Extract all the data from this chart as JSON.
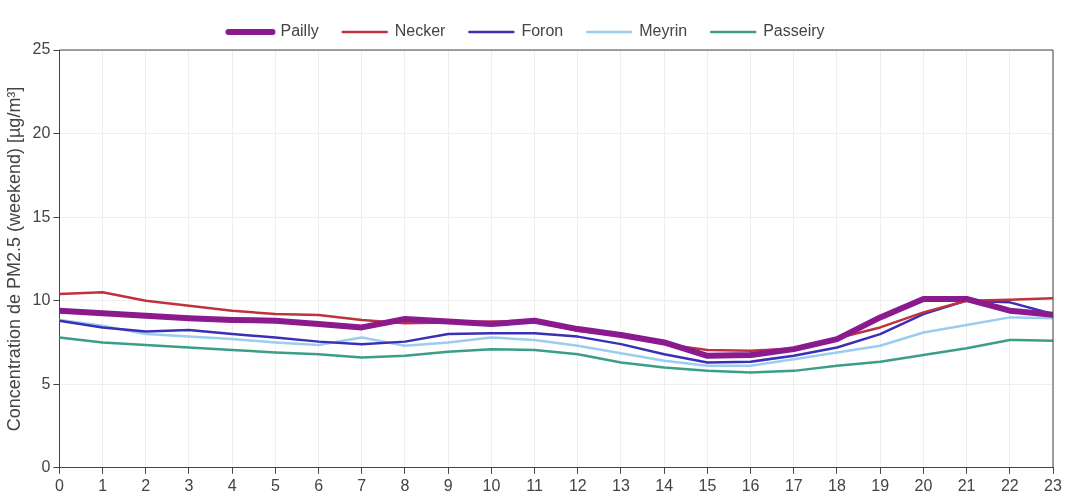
{
  "chart_data": {
    "type": "line",
    "ylabel": "Concentration de PM2.5 (weekend) [µg/m³]",
    "x": [
      0,
      1,
      2,
      3,
      4,
      5,
      6,
      7,
      8,
      9,
      10,
      11,
      12,
      13,
      14,
      15,
      16,
      17,
      18,
      19,
      20,
      21,
      22,
      23
    ],
    "xlim": [
      0,
      23
    ],
    "xticks": [
      0,
      1,
      2,
      3,
      4,
      5,
      6,
      7,
      8,
      9,
      10,
      11,
      12,
      13,
      14,
      15,
      16,
      17,
      18,
      19,
      20,
      21,
      22,
      23
    ],
    "ylim": [
      0,
      25
    ],
    "yticks": [
      0,
      5,
      10,
      15,
      20,
      25
    ],
    "grid": true,
    "legend": "top",
    "marker": "none",
    "series": [
      {
        "name": "Pailly",
        "color": "#8b1a8f",
        "values": [
          9.4,
          9.25,
          9.1,
          8.95,
          8.85,
          8.8,
          8.6,
          8.4,
          8.9,
          8.75,
          8.6,
          8.8,
          8.3,
          7.95,
          7.5,
          6.7,
          6.75,
          7.1,
          7.7,
          9.0,
          10.1,
          10.1,
          9.4,
          9.15
        ]
      },
      {
        "name": "Necker",
        "color": "#c0313f",
        "values": [
          10.4,
          10.5,
          10.0,
          9.7,
          9.4,
          9.2,
          9.15,
          8.85,
          8.65,
          8.7,
          8.75,
          8.75,
          8.2,
          7.9,
          7.4,
          7.05,
          7.0,
          7.15,
          7.75,
          8.4,
          9.3,
          10.0,
          10.05,
          10.15
        ]
      },
      {
        "name": "Foron",
        "color": "#3a2fb5",
        "values": [
          8.8,
          8.4,
          8.15,
          8.25,
          8.0,
          7.8,
          7.55,
          7.4,
          7.55,
          8.0,
          8.05,
          8.05,
          7.85,
          7.4,
          6.8,
          6.3,
          6.35,
          6.7,
          7.2,
          8.0,
          9.2,
          10.0,
          9.9,
          9.2
        ]
      },
      {
        "name": "Meyrin",
        "color": "#9ccdee",
        "values": [
          8.85,
          8.5,
          8.0,
          7.85,
          7.7,
          7.5,
          7.35,
          7.8,
          7.3,
          7.5,
          7.8,
          7.65,
          7.3,
          6.85,
          6.4,
          6.1,
          6.1,
          6.5,
          6.9,
          7.3,
          8.1,
          8.55,
          9.0,
          8.95
        ]
      },
      {
        "name": "Passeiry",
        "color": "#3a9e88",
        "values": [
          7.8,
          7.5,
          7.35,
          7.2,
          7.05,
          6.9,
          6.8,
          6.6,
          6.7,
          6.95,
          7.1,
          7.05,
          6.8,
          6.3,
          6.0,
          5.8,
          5.7,
          5.8,
          6.1,
          6.35,
          6.75,
          7.15,
          7.65,
          7.6
        ]
      }
    ]
  }
}
